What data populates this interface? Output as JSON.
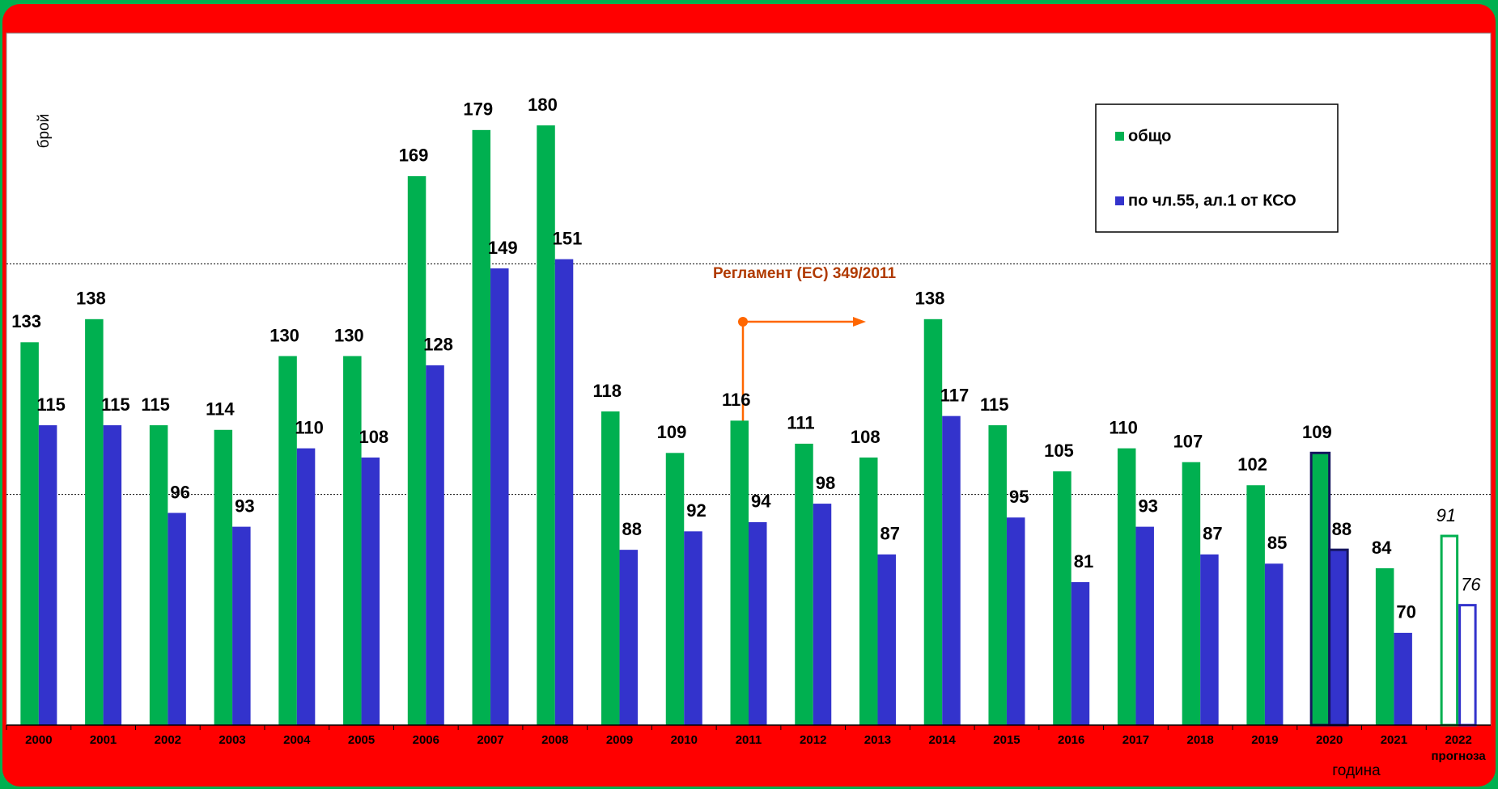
{
  "chart_data": {
    "type": "bar",
    "x_label": "година",
    "y_label": "брой",
    "categories": [
      "2000",
      "2001",
      "2002",
      "2003",
      "2004",
      "2005",
      "2006",
      "2007",
      "2008",
      "2009",
      "2010",
      "2011",
      "2012",
      "2013",
      "2014",
      "2015",
      "2016",
      "2017",
      "2018",
      "2019",
      "2020",
      "2021",
      "2022"
    ],
    "series": [
      {
        "name": "общо",
        "color": "#00b050",
        "values": [
          133,
          138,
          115,
          114,
          130,
          130,
          169,
          179,
          180,
          118,
          109,
          116,
          111,
          108,
          138,
          115,
          105,
          110,
          107,
          102,
          109,
          84,
          91
        ]
      },
      {
        "name": "по чл.55, ал.1 от КСО",
        "color": "#3333cc",
        "values": [
          115,
          115,
          96,
          93,
          110,
          108,
          128,
          149,
          151,
          88,
          92,
          94,
          98,
          87,
          117,
          95,
          81,
          93,
          87,
          85,
          88,
          70,
          76
        ]
      }
    ],
    "ylim": [
      50,
      200
    ],
    "grid_lines": [
      100,
      150
    ],
    "highlight": 20,
    "highlight_color": "#15155e",
    "forecast": {
      "index": 22,
      "label": "прогноза"
    },
    "annotation": {
      "text": "Регламент (ЕС) 349/2011",
      "index": 11,
      "color": "#ff6600",
      "text_color": "#b03a00"
    },
    "legend": "top-right"
  }
}
